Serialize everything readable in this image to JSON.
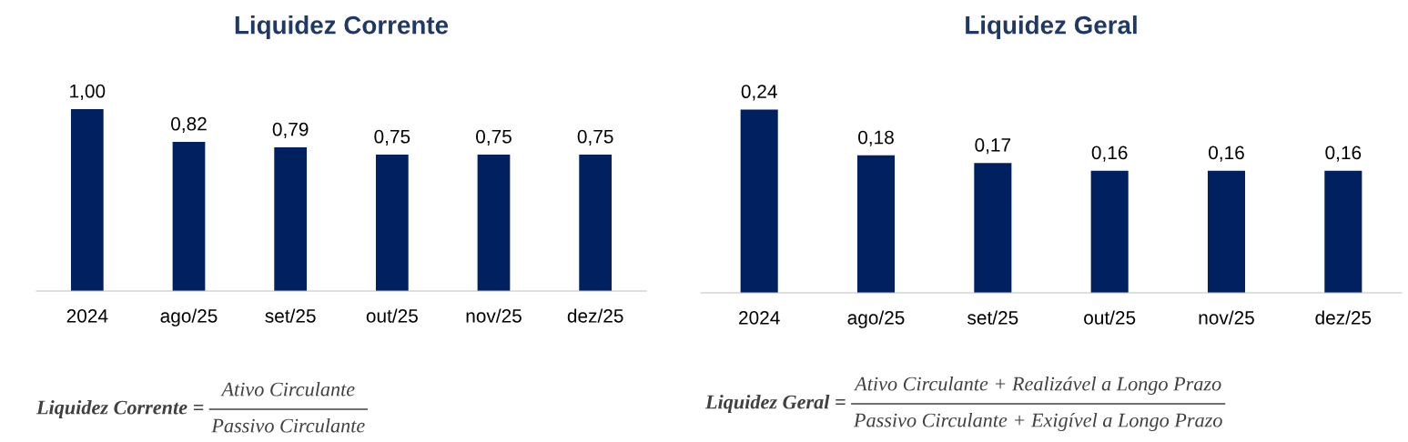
{
  "chart_data": [
    {
      "type": "bar",
      "title": "Liquidez Corrente",
      "categories": [
        "2024",
        "ago/25",
        "set/25",
        "out/25",
        "nov/25",
        "dez/25"
      ],
      "values": [
        1.0,
        0.82,
        0.79,
        0.75,
        0.75,
        0.75
      ],
      "value_labels": [
        "1,00",
        "0,82",
        "0,79",
        "0,75",
        "0,75",
        "0,75"
      ],
      "color": "#002060",
      "annotations": [
        "Liquidez Corrente =",
        "Ativo Circulante",
        "Passivo Circulante"
      ]
    },
    {
      "type": "bar",
      "title": "Liquidez Geral",
      "categories": [
        "2024",
        "ago/25",
        "set/25",
        "out/25",
        "nov/25",
        "dez/25"
      ],
      "values": [
        0.24,
        0.18,
        0.17,
        0.16,
        0.16,
        0.16
      ],
      "value_labels": [
        "0,24",
        "0,18",
        "0,17",
        "0,16",
        "0,16",
        "0,16"
      ],
      "color": "#002060",
      "annotations": [
        "Liquidez Geral =",
        "Ativo Circulante + Realizável a Longo Prazo",
        "Passivo Circulante + Exigível a Longo Prazo"
      ]
    }
  ]
}
